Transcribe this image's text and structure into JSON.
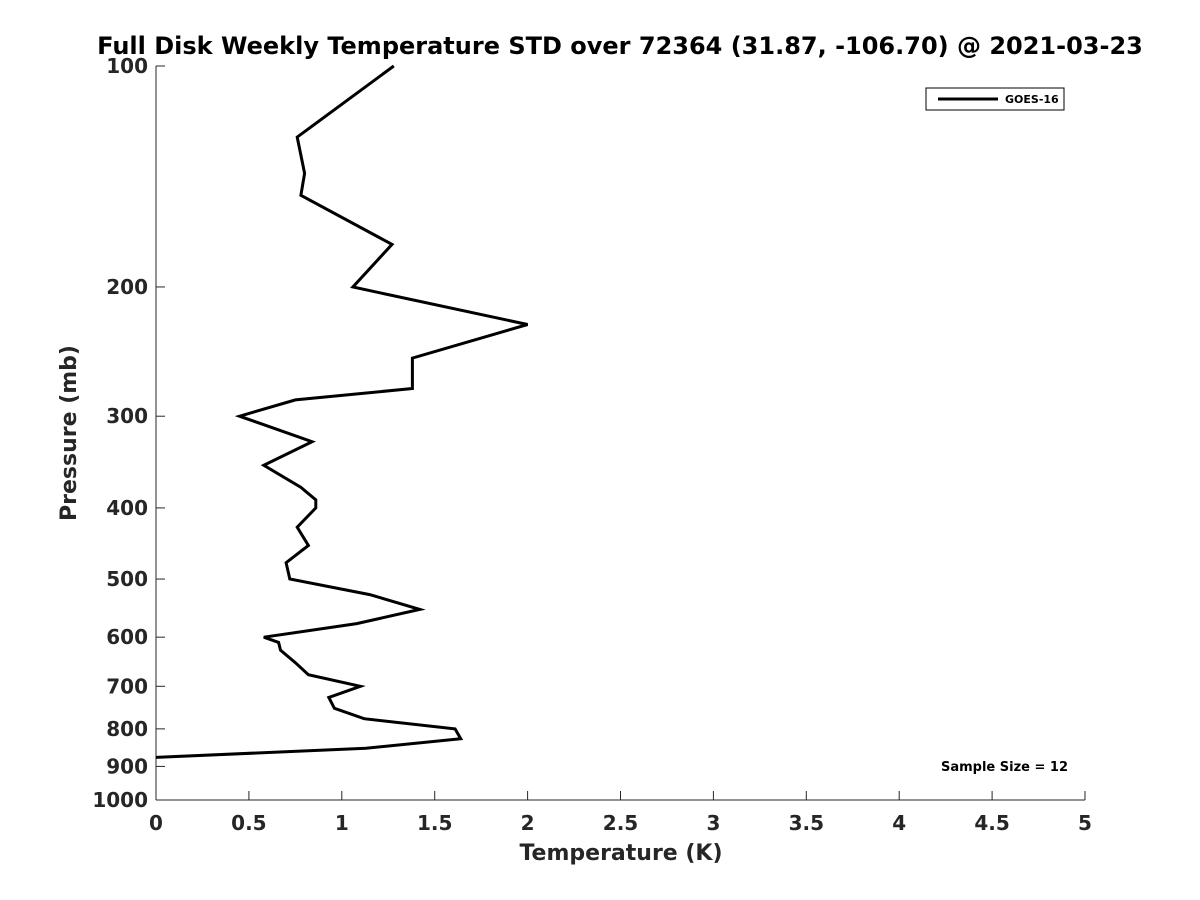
{
  "chart_data": {
    "type": "line",
    "title": "Full Disk Weekly Temperature STD over 72364 (31.87, -106.70) @ 2021-03-23",
    "xlabel": "Temperature (K)",
    "ylabel": "Pressure (mb)",
    "xlim": [
      0,
      5
    ],
    "ylim": [
      100,
      1000
    ],
    "y_scale": "log",
    "y_reversed": true,
    "x_ticks": [
      "0",
      "0.5",
      "1",
      "1.5",
      "2",
      "2.5",
      "3",
      "3.5",
      "4",
      "4.5",
      "5"
    ],
    "y_ticks": [
      "100",
      "200",
      "300",
      "400",
      "500",
      "600",
      "700",
      "800",
      "900",
      "1000"
    ],
    "grid": false,
    "legend_position": "top-right",
    "annotation": "Sample Size = 12",
    "series": [
      {
        "name": "GOES-16",
        "color": "#000000",
        "points": [
          {
            "x": 1.28,
            "p": 100
          },
          {
            "x": 0.76,
            "p": 125
          },
          {
            "x": 0.8,
            "p": 140
          },
          {
            "x": 0.78,
            "p": 150
          },
          {
            "x": 1.27,
            "p": 175
          },
          {
            "x": 1.06,
            "p": 200
          },
          {
            "x": 2.0,
            "p": 225
          },
          {
            "x": 1.38,
            "p": 250
          },
          {
            "x": 1.38,
            "p": 275
          },
          {
            "x": 0.75,
            "p": 285
          },
          {
            "x": 0.45,
            "p": 300
          },
          {
            "x": 0.84,
            "p": 325
          },
          {
            "x": 0.58,
            "p": 350
          },
          {
            "x": 0.78,
            "p": 375
          },
          {
            "x": 0.86,
            "p": 390
          },
          {
            "x": 0.86,
            "p": 400
          },
          {
            "x": 0.76,
            "p": 425
          },
          {
            "x": 0.82,
            "p": 450
          },
          {
            "x": 0.7,
            "p": 475
          },
          {
            "x": 0.72,
            "p": 500
          },
          {
            "x": 1.15,
            "p": 525
          },
          {
            "x": 1.42,
            "p": 550
          },
          {
            "x": 1.08,
            "p": 575
          },
          {
            "x": 0.58,
            "p": 600
          },
          {
            "x": 0.66,
            "p": 610
          },
          {
            "x": 0.67,
            "p": 625
          },
          {
            "x": 0.75,
            "p": 650
          },
          {
            "x": 0.82,
            "p": 675
          },
          {
            "x": 1.1,
            "p": 700
          },
          {
            "x": 0.93,
            "p": 725
          },
          {
            "x": 0.96,
            "p": 750
          },
          {
            "x": 1.12,
            "p": 775
          },
          {
            "x": 1.61,
            "p": 800
          },
          {
            "x": 1.64,
            "p": 825
          },
          {
            "x": 1.13,
            "p": 850
          },
          {
            "x": 0.0,
            "p": 875
          }
        ]
      }
    ]
  }
}
